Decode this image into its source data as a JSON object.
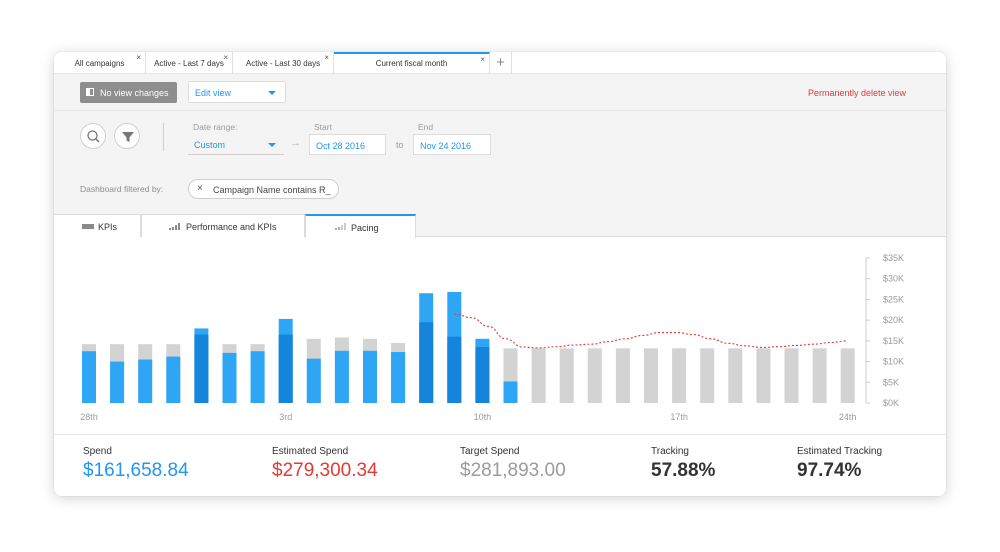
{
  "tabs": [
    {
      "label": "All campaigns",
      "close": "×"
    },
    {
      "label": "Active - Last 7 days",
      "close": "×"
    },
    {
      "label": "Active - Last 30 days",
      "close": "×"
    },
    {
      "label": "Current fiscal month",
      "close": "×"
    }
  ],
  "add_tab": "+",
  "toolbar": {
    "no_view_changes": "No view changes",
    "edit_view": "Edit view",
    "delete_view": "Permanently delete view"
  },
  "date_filter": {
    "range_label": "Date range:",
    "range_value": "Custom",
    "arrow": "→",
    "start_label": "Start",
    "start_value": "Oct 28 2016",
    "to": "to",
    "end_label": "End",
    "end_value": "Nov 24 2016"
  },
  "dashboard_filter": {
    "label": "Dashboard filtered by:",
    "chip_close": "×",
    "chip_text": "Campaign Name contains R_"
  },
  "view_tabs": [
    {
      "label": "KPIs"
    },
    {
      "label": "Performance and KPIs"
    },
    {
      "label": "Pacing"
    }
  ],
  "colors": {
    "accent": "#2196f3",
    "bar_blue": "#2ea6f5",
    "bar_dark_blue": "#1585dc",
    "bar_gray": "#d3d3d3",
    "danger": "#e53935",
    "muted": "#9b9b9b"
  },
  "chart_data": {
    "type": "bar",
    "x_tick_labels": [
      "28th",
      "3rd",
      "10th",
      "17th",
      "24th"
    ],
    "y_tick_labels": [
      "$35K",
      "$30K",
      "$25K",
      "$20K",
      "$15K",
      "$10K",
      "$5K",
      "$0K"
    ],
    "ylim": [
      0,
      35000
    ],
    "ylabel": "",
    "xlabel": "",
    "grid": false,
    "days": 28,
    "actual_spend": [
      12500,
      10000,
      10500,
      11200,
      16500,
      12100,
      12500,
      16500,
      10700,
      12600,
      12600,
      12300,
      19500,
      16000,
      13500,
      5200,
      0,
      0,
      0,
      0,
      0,
      0,
      0,
      0,
      0,
      0,
      0,
      0
    ],
    "actual_spend_extra": [
      0,
      0,
      0,
      0,
      1500,
      0,
      0,
      3800,
      0,
      0,
      0,
      0,
      7000,
      10800,
      2000,
      0,
      0,
      0,
      0,
      0,
      0,
      0,
      0,
      0,
      0,
      0,
      0,
      0
    ],
    "budget": [
      14200,
      14200,
      14200,
      14200,
      14200,
      14200,
      14200,
      14200,
      15500,
      15800,
      15500,
      14500,
      14500,
      14500,
      14500,
      13200,
      13200,
      13200,
      13200,
      13200,
      13200,
      13200,
      13200,
      13200,
      13200,
      13200,
      13200,
      13200
    ],
    "dark_days": [
      4,
      7,
      12,
      13,
      14
    ],
    "pacing_line": [
      21500,
      20600,
      18500,
      15500,
      13500,
      13300,
      13600,
      14000,
      14200,
      14800,
      15500,
      16300,
      17000,
      17000,
      16500,
      15500,
      14400,
      13800,
      13400,
      13600,
      13900,
      14200,
      14600,
      15000
    ],
    "pacing_start_day": 13
  },
  "summary": [
    {
      "label": "Spend",
      "value": "$161,658.84",
      "color": "#2196f3",
      "bold": false
    },
    {
      "label": "Estimated Spend",
      "value": "$279,300.34",
      "color": "#e53935",
      "bold": false
    },
    {
      "label": "Target Spend",
      "value": "$281,893.00",
      "color": "#9b9b9b",
      "bold": false
    },
    {
      "label": "Tracking",
      "value": "57.88%",
      "color": "#333333",
      "bold": true
    },
    {
      "label": "Estimated Tracking",
      "value": "97.74%",
      "color": "#333333",
      "bold": true
    }
  ]
}
